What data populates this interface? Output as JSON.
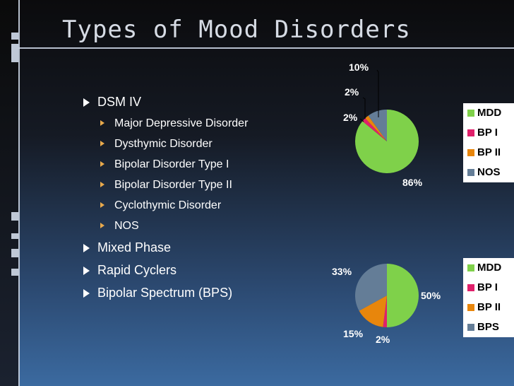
{
  "title": "Types of Mood Disorders",
  "bullets": {
    "dsm": "DSM IV",
    "sub": [
      "Major Depressive Disorder",
      "Dysthymic Disorder",
      "Bipolar Disorder Type I",
      "Bipolar Disorder Type II",
      "Cyclothymic Disorder",
      "NOS"
    ],
    "mixed": "Mixed Phase",
    "rapid": "Rapid Cyclers",
    "bps": "Bipolar Spectrum (BPS)"
  },
  "colors": {
    "green": "#7fd14a",
    "pink": "#e0206b",
    "orange": "#e8860c",
    "slate": "#647d97"
  },
  "chart_data": [
    {
      "type": "pie",
      "categories": [
        "MDD",
        "BP I",
        "BP II",
        "NOS"
      ],
      "values": [
        86,
        2,
        2,
        10
      ],
      "labels": [
        "86%",
        "2%",
        "2%",
        "10%"
      ],
      "legend_position": "right"
    },
    {
      "type": "pie",
      "categories": [
        "MDD",
        "BP I",
        "BP II",
        "BPS"
      ],
      "values": [
        50,
        2,
        15,
        33
      ],
      "labels": [
        "50%",
        "2%",
        "15%",
        "33%"
      ],
      "legend_position": "right"
    }
  ]
}
